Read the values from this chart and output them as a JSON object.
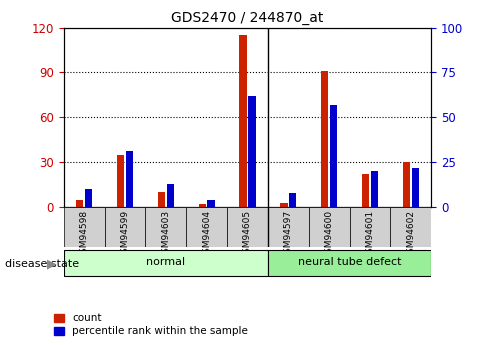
{
  "title": "GDS2470 / 244870_at",
  "samples": [
    "GSM94598",
    "GSM94599",
    "GSM94603",
    "GSM94604",
    "GSM94605",
    "GSM94597",
    "GSM94600",
    "GSM94601",
    "GSM94602"
  ],
  "count_values": [
    5,
    35,
    10,
    2,
    115,
    3,
    91,
    22,
    30
  ],
  "percentile_values": [
    10,
    31,
    13,
    4,
    62,
    8,
    57,
    20,
    22
  ],
  "groups": [
    {
      "label": "normal",
      "start": 0,
      "end": 4,
      "color": "#ccffcc"
    },
    {
      "label": "neural tube defect",
      "start": 5,
      "end": 8,
      "color": "#99ee99"
    }
  ],
  "left_ylim": [
    0,
    120
  ],
  "right_ylim": [
    0,
    100
  ],
  "left_yticks": [
    0,
    30,
    60,
    90,
    120
  ],
  "right_yticks": [
    0,
    25,
    50,
    75,
    100
  ],
  "left_tick_color": "#cc0000",
  "right_tick_color": "#0000cc",
  "bar_width": 0.18,
  "count_color": "#cc2200",
  "percentile_color": "#0000cc",
  "plot_bg": "#ffffff",
  "grid_color": "#000000",
  "disease_state_label": "disease state",
  "legend_count": "count",
  "legend_percentile": "percentile rank within the sample"
}
